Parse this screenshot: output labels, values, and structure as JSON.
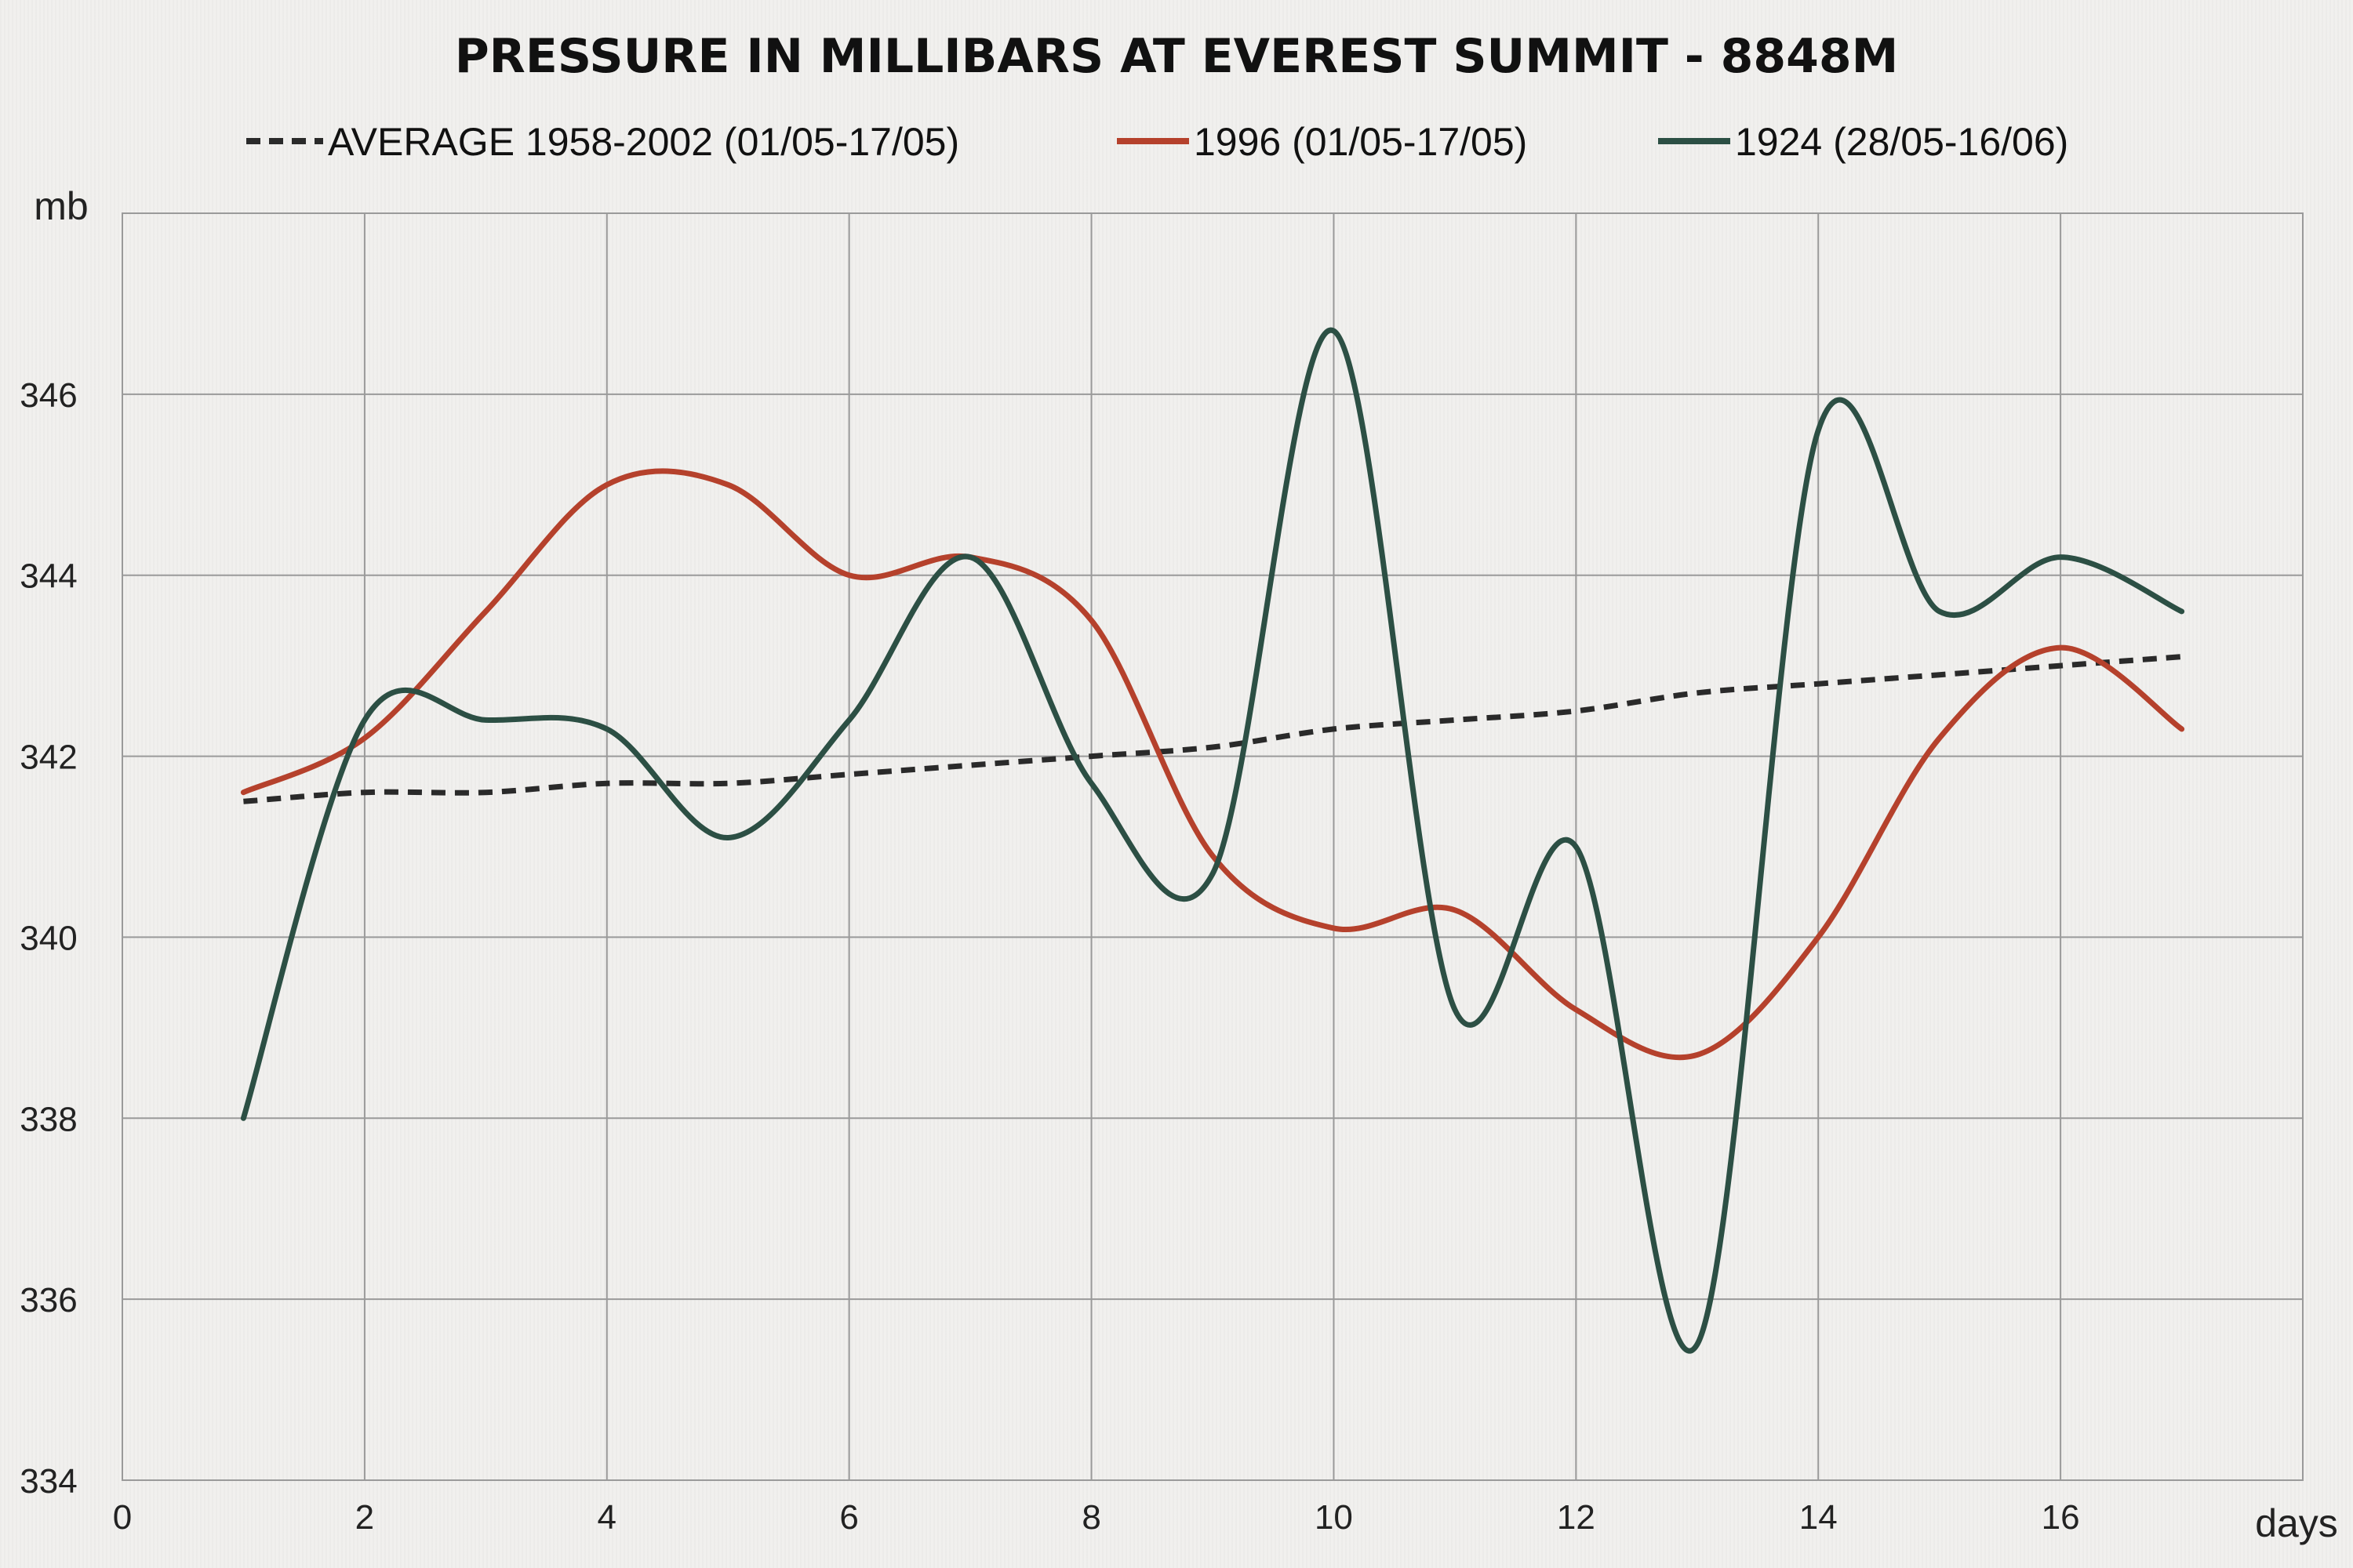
{
  "chart_data": {
    "type": "line",
    "title": "PRESSURE IN MILLIBARS AT EVEREST SUMMIT - 8848M",
    "xlabel": "days",
    "ylabel": "mb",
    "xlim": [
      0,
      18
    ],
    "ylim": [
      334,
      348
    ],
    "xticks": [
      0,
      2,
      4,
      6,
      8,
      10,
      12,
      14,
      16
    ],
    "yticks": [
      334,
      336,
      338,
      340,
      342,
      344,
      346
    ],
    "grid": true,
    "legend_position": "top-center",
    "series": [
      {
        "name": "AVERAGE 1958-2002 (01/05-17/05)",
        "color": "#2a2a2a",
        "style": "dashed",
        "x": [
          1,
          2,
          3,
          4,
          5,
          6,
          7,
          8,
          9,
          10,
          11,
          12,
          13,
          14,
          15,
          16,
          17
        ],
        "y": [
          341.5,
          341.6,
          341.6,
          341.7,
          341.7,
          341.8,
          341.9,
          342.0,
          342.1,
          342.3,
          342.4,
          342.5,
          342.7,
          342.8,
          342.9,
          343.0,
          343.1
        ]
      },
      {
        "name": "1996 (01/05-17/05)",
        "color": "#b5412c",
        "style": "solid",
        "x": [
          1,
          2,
          3,
          4,
          5,
          6,
          7,
          8,
          9,
          10,
          11,
          12,
          13,
          14,
          15,
          16,
          17
        ],
        "y": [
          341.6,
          342.2,
          343.6,
          345.0,
          345.0,
          344.0,
          344.2,
          343.5,
          340.9,
          340.1,
          340.3,
          339.2,
          338.7,
          340.0,
          342.2,
          343.2,
          342.3
        ]
      },
      {
        "name": "1924 (28/05-16/06)",
        "color": "#2c4f44",
        "style": "solid",
        "x": [
          1,
          2,
          3,
          4,
          5,
          6,
          7,
          8,
          9,
          10,
          11,
          12,
          13,
          14,
          15,
          16,
          17
        ],
        "y": [
          338.0,
          342.4,
          342.4,
          342.3,
          341.1,
          342.4,
          344.2,
          341.7,
          340.7,
          346.7,
          339.2,
          341.0,
          335.5,
          345.6,
          343.6,
          344.2,
          343.6
        ]
      }
    ]
  }
}
